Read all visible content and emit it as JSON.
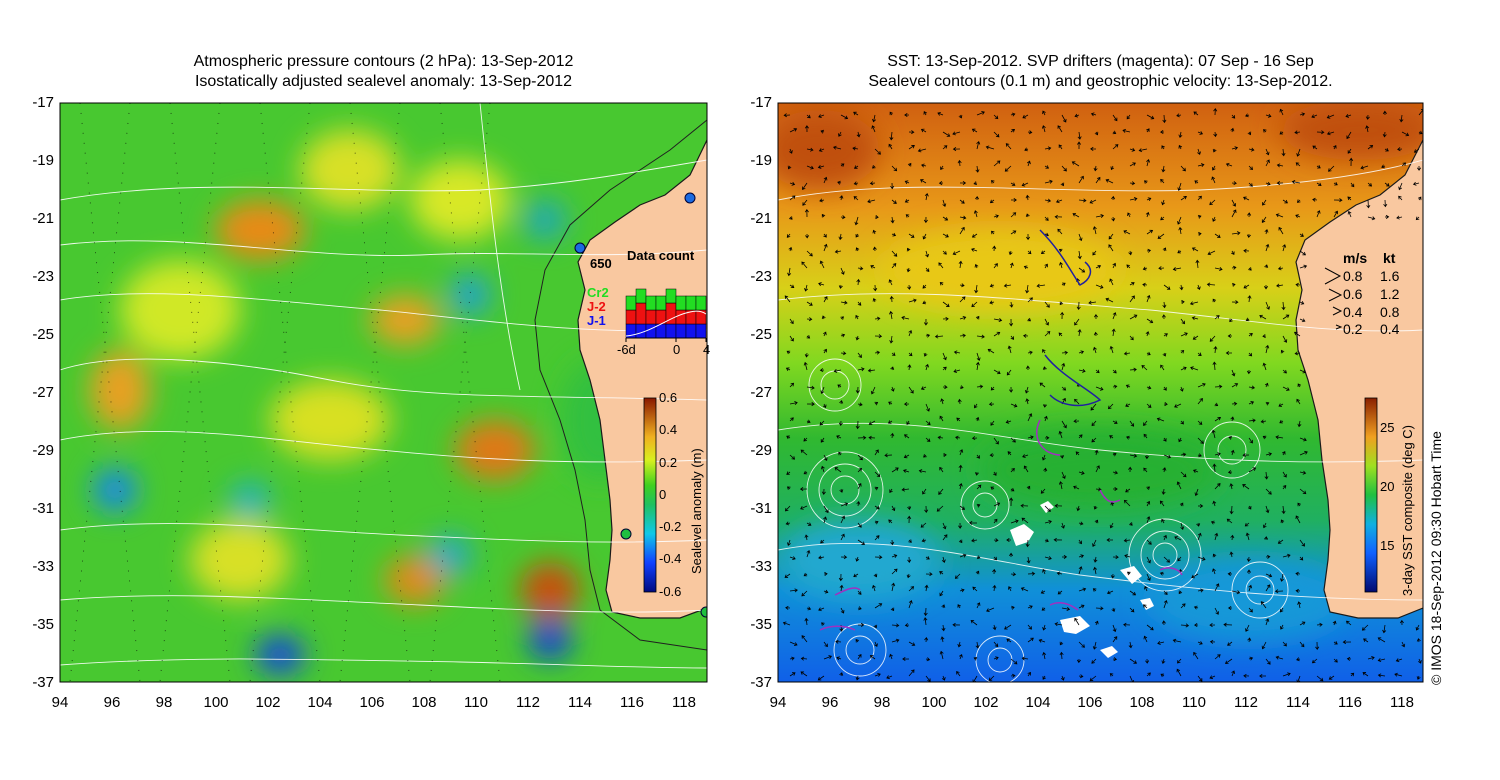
{
  "left_panel": {
    "title_line1": "Atmospheric pressure contours (2 hPa): 13-Sep-2012",
    "title_line2": "Isostatically adjusted sealevel anomaly: 13-Sep-2012",
    "lat_ticks": [
      "-17",
      "-19",
      "-21",
      "-23",
      "-25",
      "-27",
      "-29",
      "-31",
      "-33",
      "-35",
      "-37"
    ],
    "lon_ticks": [
      "94",
      "96",
      "98",
      "100",
      "102",
      "104",
      "106",
      "108",
      "110",
      "112",
      "114",
      "116",
      "118"
    ],
    "colorbar": {
      "label": "Sealevel anomaly (m)",
      "ticks": [
        "0.6",
        "0.4",
        "0.2",
        "0",
        "-0.2",
        "-0.4",
        "-0.6"
      ],
      "range": [
        -0.6,
        0.6
      ]
    },
    "depth_label": "650",
    "data_count": {
      "title": "Data count",
      "series_labels": [
        "Cr2",
        "J-2",
        "J-1"
      ],
      "series_colors": [
        "#22dd22",
        "#ee1111",
        "#1111ee"
      ],
      "x_ticks": [
        "-6d",
        "0",
        "4"
      ],
      "green": [
        2,
        2,
        2,
        2,
        2,
        2,
        2,
        2
      ],
      "red": [
        2,
        3,
        2,
        2,
        3,
        2,
        2,
        2
      ],
      "blue": [
        2,
        2,
        2,
        2,
        2,
        2,
        2,
        2
      ]
    }
  },
  "right_panel": {
    "title_line1": "SST: 13-Sep-2012. SVP drifters (magenta): 07 Sep - 16 Sep",
    "title_line2": "Sealevel contours (0.1 m) and geostrophic velocity: 13-Sep-2012.",
    "lat_ticks": [
      "-17",
      "-19",
      "-21",
      "-23",
      "-25",
      "-27",
      "-29",
      "-31",
      "-33",
      "-35",
      "-37"
    ],
    "lon_ticks": [
      "94",
      "96",
      "98",
      "100",
      "102",
      "104",
      "106",
      "108",
      "110",
      "112",
      "114",
      "116",
      "118"
    ],
    "velocity_legend": {
      "header_ms": "m/s",
      "header_kt": "kt",
      "rows": [
        {
          "ms": "0.8",
          "kt": "1.6"
        },
        {
          "ms": "0.6",
          "kt": "1.2"
        },
        {
          "ms": "0.4",
          "kt": "0.8"
        },
        {
          "ms": "0.2",
          "kt": "0.4"
        }
      ]
    },
    "colorbar": {
      "label": "3-day SST composite (deg C)",
      "ticks": [
        "25",
        "20",
        "15"
      ],
      "range": [
        11,
        28
      ]
    },
    "credit": "© IMOS 18-Sep-2012 09:30 Hobart Time"
  },
  "colors": {
    "land": "#f9c8a0",
    "sla_low": "#0a1a9a",
    "sla_mid": "#22bb22",
    "sla_high": "#9a2a00",
    "sst_warm": "#d86a10",
    "sst_cold": "#1060e0"
  }
}
